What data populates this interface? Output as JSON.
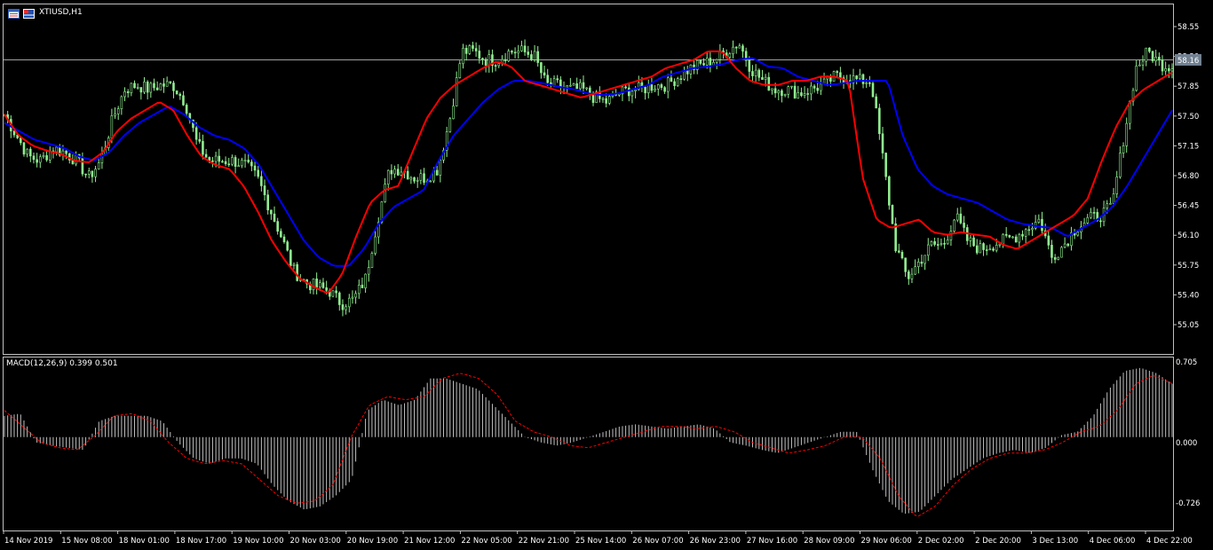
{
  "symbol_label": "XTIUSD,H1",
  "macd_label": "MACD(12,26,9) 0.399 0.501",
  "colors": {
    "background": "#000000",
    "frame": "#c0c0c0",
    "candle": "#90ee90",
    "ma_fast": "#ff0000",
    "ma_slow": "#0000ff",
    "macd_hist": "#c0c0c0",
    "macd_signal": "#ff0000",
    "price_tag_bg": "#708090"
  },
  "icons": [
    "window-icon",
    "flag-icon"
  ],
  "chart_data": [
    {
      "type": "candlestick",
      "title": "XTIUSD,H1",
      "y_ticks": [
        "58.55",
        "58.20",
        "57.85",
        "57.50",
        "57.15",
        "56.80",
        "56.45",
        "56.10",
        "55.75",
        "55.40",
        "55.05"
      ],
      "ylim": [
        54.85,
        58.7
      ],
      "current_price": "58.16",
      "x_labels": [
        "14 Nov 2019",
        "15 Nov 08:00",
        "18 Nov 01:00",
        "18 Nov 17:00",
        "19 Nov 10:00",
        "20 Nov 03:00",
        "20 Nov 19:00",
        "21 Nov 12:00",
        "22 Nov 05:00",
        "22 Nov 21:00",
        "25 Nov 14:00",
        "26 Nov 07:00",
        "26 Nov 23:00",
        "27 Nov 16:00",
        "28 Nov 09:00",
        "29 Nov 06:00",
        "2 Dec 02:00",
        "2 Dec 20:00",
        "3 Dec 13:00",
        "4 Dec 06:00",
        "4 Dec 22:00"
      ],
      "price_path": [
        57.55,
        57.3,
        57.05,
        57.0,
        57.15,
        57.1,
        57.0,
        56.8,
        57.0,
        57.5,
        57.85,
        57.9,
        57.85,
        57.9,
        57.9,
        57.7,
        57.2,
        57.0,
        57.0,
        57.0,
        56.95,
        56.8,
        56.45,
        56.1,
        55.7,
        55.55,
        55.5,
        55.45,
        55.3,
        55.35,
        55.6,
        56.3,
        56.9,
        56.9,
        56.8,
        56.8,
        56.9,
        57.5,
        58.3,
        58.3,
        58.2,
        58.2,
        58.3,
        58.3,
        58.25,
        57.9,
        57.9,
        57.85,
        57.85,
        57.75,
        57.7,
        57.8,
        57.85,
        57.85,
        57.9,
        57.9,
        58.0,
        58.1,
        58.15,
        58.2,
        58.3,
        58.4,
        58.1,
        57.95,
        57.85,
        57.85,
        57.8,
        57.85,
        57.9,
        58.0,
        58.0,
        57.95,
        57.95,
        57.0,
        56.0,
        55.6,
        55.8,
        56.0,
        56.0,
        56.35,
        56.05,
        55.95,
        56.0,
        56.05,
        56.1,
        56.2,
        56.3,
        55.85,
        56.0,
        56.2,
        56.3,
        56.35,
        56.45,
        57.3,
        58.1,
        58.3,
        58.15,
        58.12
      ],
      "ma_fast_path": [
        57.55,
        57.3,
        57.18,
        57.12,
        57.08,
        57.0,
        56.98,
        57.1,
        57.35,
        57.5,
        57.6,
        57.7,
        57.6,
        57.3,
        57.05,
        56.95,
        56.9,
        56.7,
        56.4,
        56.05,
        55.8,
        55.6,
        55.5,
        55.42,
        55.65,
        56.1,
        56.5,
        56.65,
        56.7,
        57.1,
        57.5,
        57.75,
        57.9,
        58.0,
        58.1,
        58.18,
        58.12,
        57.95,
        57.9,
        57.85,
        57.8,
        57.75,
        57.8,
        57.85,
        57.9,
        57.95,
        58.0,
        58.1,
        58.15,
        58.2,
        58.3,
        58.3,
        58.1,
        57.95,
        57.9,
        57.9,
        57.95,
        57.95,
        58.0,
        58.0,
        57.95,
        56.8,
        56.3,
        56.2,
        56.25,
        56.3,
        56.15,
        56.12,
        56.15,
        56.12,
        56.1,
        56.0,
        55.95,
        56.05,
        56.15,
        56.25,
        56.35,
        56.55,
        57.0,
        57.4,
        57.7,
        57.85,
        57.95,
        58.05
      ],
      "ma_slow_path": [
        57.45,
        57.35,
        57.25,
        57.2,
        57.15,
        57.05,
        57.0,
        57.1,
        57.3,
        57.45,
        57.55,
        57.65,
        57.55,
        57.4,
        57.3,
        57.25,
        57.15,
        56.95,
        56.65,
        56.35,
        56.05,
        55.85,
        55.75,
        55.75,
        55.95,
        56.25,
        56.45,
        56.55,
        56.65,
        57.0,
        57.3,
        57.5,
        57.7,
        57.85,
        57.95,
        57.95,
        57.92,
        57.88,
        57.85,
        57.8,
        57.78,
        57.8,
        57.85,
        57.9,
        58.0,
        58.05,
        58.1,
        58.12,
        58.15,
        58.2,
        58.22,
        58.12,
        58.1,
        58.0,
        57.95,
        57.9,
        57.92,
        57.95,
        57.95,
        57.95,
        57.3,
        56.9,
        56.7,
        56.6,
        56.55,
        56.5,
        56.4,
        56.3,
        56.25,
        56.22,
        56.2,
        56.1,
        56.2,
        56.3,
        56.45,
        56.7,
        57.0,
        57.3,
        57.6
      ]
    },
    {
      "type": "bar",
      "title": "MACD(12,26,9) 0.399 0.501",
      "y_ticks": [
        "0.705",
        "0.000",
        "-0.726"
      ],
      "ylim": [
        -0.726,
        0.705
      ],
      "main_value": 0.399,
      "signal_value": 0.501,
      "hist_path": [
        0.2,
        0.22,
        -0.05,
        -0.08,
        -0.1,
        -0.12,
        0.15,
        0.2,
        0.2,
        0.2,
        0.15,
        -0.05,
        -0.2,
        -0.25,
        -0.2,
        -0.2,
        -0.25,
        -0.45,
        -0.6,
        -0.68,
        -0.65,
        -0.55,
        -0.4,
        0.25,
        0.35,
        0.3,
        0.35,
        0.55,
        0.55,
        0.5,
        0.45,
        0.3,
        0.15,
        0.0,
        -0.05,
        -0.08,
        -0.05,
        0.0,
        0.05,
        0.1,
        0.12,
        0.1,
        0.08,
        0.1,
        0.12,
        0.08,
        -0.05,
        -0.08,
        -0.12,
        -0.15,
        -0.1,
        -0.05,
        0.0,
        0.05,
        0.05,
        -0.3,
        -0.6,
        -0.72,
        -0.7,
        -0.55,
        -0.4,
        -0.3,
        -0.2,
        -0.15,
        -0.12,
        -0.15,
        -0.1,
        0.02,
        0.05,
        0.2,
        0.45,
        0.62,
        0.65,
        0.6,
        0.5
      ],
      "signal_path": [
        0.25,
        0.1,
        -0.05,
        -0.1,
        -0.12,
        0.02,
        0.2,
        0.22,
        0.15,
        -0.05,
        -0.2,
        -0.25,
        -0.22,
        -0.25,
        -0.4,
        -0.55,
        -0.62,
        -0.6,
        -0.45,
        0.0,
        0.3,
        0.38,
        0.35,
        0.38,
        0.55,
        0.6,
        0.55,
        0.4,
        0.15,
        0.05,
        0.0,
        -0.08,
        -0.1,
        -0.05,
        0.0,
        0.05,
        0.1,
        0.1,
        0.08,
        0.1,
        0.05,
        -0.05,
        -0.1,
        -0.15,
        -0.12,
        -0.08,
        0.0,
        0.0,
        -0.2,
        -0.55,
        -0.75,
        -0.65,
        -0.45,
        -0.3,
        -0.2,
        -0.15,
        -0.15,
        -0.12,
        -0.05,
        0.05,
        0.1,
        0.25,
        0.5,
        0.58,
        0.5
      ]
    }
  ]
}
